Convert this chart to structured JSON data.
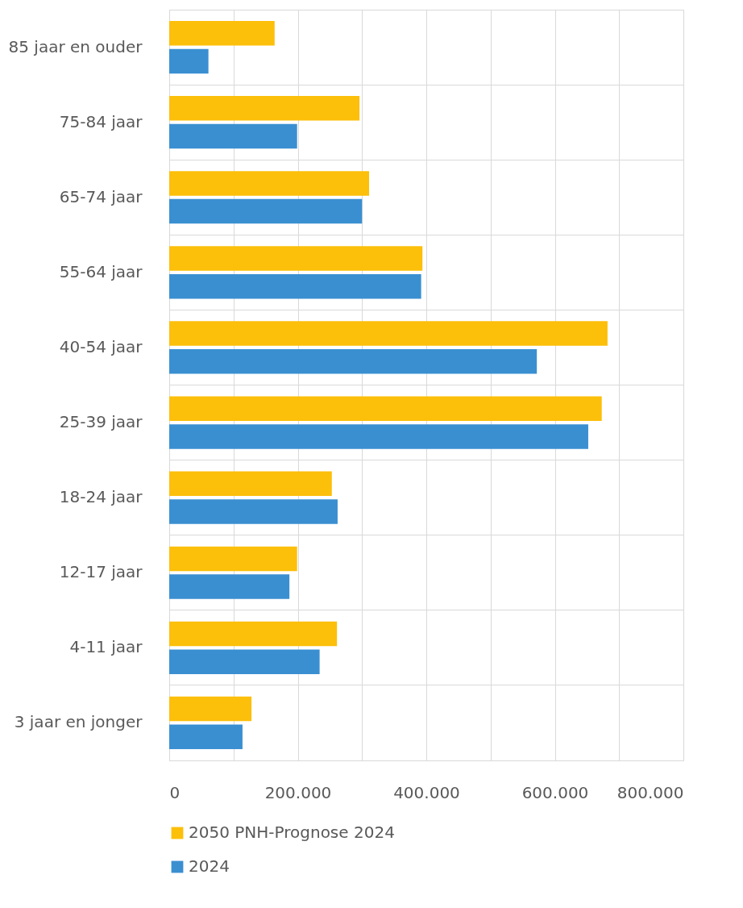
{
  "chart_data": {
    "type": "bar",
    "orientation": "horizontal",
    "categories": [
      "85 jaar en ouder",
      "75-84 jaar",
      "65-74 jaar",
      "55-64 jaar",
      "40-54 jaar",
      "25-39 jaar",
      "18-24 jaar",
      "12-17 jaar",
      "4-11 jaar",
      "3 jaar en jonger"
    ],
    "series": [
      {
        "name": "2050 PNH-Prognose 2024",
        "color": "#fcbf0a",
        "values": [
          164000,
          296000,
          311000,
          394000,
          682000,
          673000,
          253000,
          199000,
          261000,
          128000
        ]
      },
      {
        "name": "2024",
        "color": "#3a8fd1",
        "values": [
          61000,
          199000,
          300000,
          392000,
          572000,
          652000,
          262000,
          187000,
          234000,
          114000
        ]
      }
    ],
    "xlim": [
      0,
      800000
    ],
    "xticks": [
      0,
      {
        "value": 100000,
        "label": null
      },
      {
        "value": 200000,
        "label": "200.000"
      },
      {
        "value": 300000,
        "label": null
      },
      {
        "value": 400000,
        "label": "400.000"
      },
      {
        "value": 500000,
        "label": null
      },
      {
        "value": 600000,
        "label": "600.000"
      },
      {
        "value": 700000,
        "label": null
      },
      {
        "value": 800000,
        "label": "800.000"
      }
    ],
    "grid": true,
    "legend": "bottom"
  }
}
